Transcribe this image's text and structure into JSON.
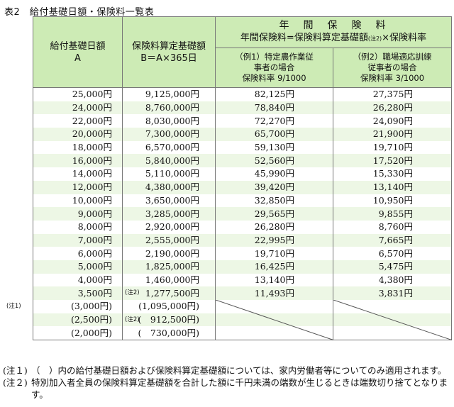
{
  "title": "表2　給付基礎日額・保険料一覧表",
  "header": {
    "col1": [
      "給付基礎日額",
      "A"
    ],
    "col2": [
      "保険料算定基礎額",
      "B＝A×365日"
    ],
    "group_title": "年　間　保　険　料",
    "group_formula_a": "年間保険料=保険料算定基礎額",
    "group_formula_note": "(注2)",
    "group_formula_b": "×保険料率",
    "ex1": [
      "（例1）特定農作業従",
      "事者の場合",
      "保険料率 9/1000"
    ],
    "ex2": [
      "（例2）職場適応訓練",
      "従事者の場合",
      "保険料率 3/1000"
    ]
  },
  "rows": [
    {
      "a": "25,000円",
      "b": "9,125,000円",
      "c": "82,125円",
      "d": "27,375円"
    },
    {
      "a": "24,000円",
      "b": "8,760,000円",
      "c": "78,840円",
      "d": "26,280円"
    },
    {
      "a": "22,000円",
      "b": "8,030,000円",
      "c": "72,270円",
      "d": "24,090円"
    },
    {
      "a": "20,000円",
      "b": "7,300,000円",
      "c": "65,700円",
      "d": "21,900円"
    },
    {
      "a": "18,000円",
      "b": "6,570,000円",
      "c": "59,130円",
      "d": "19,710円"
    },
    {
      "a": "16,000円",
      "b": "5,840,000円",
      "c": "52,560円",
      "d": "17,520円"
    },
    {
      "a": "14,000円",
      "b": "5,110,000円",
      "c": "45,990円",
      "d": "15,330円"
    },
    {
      "a": "12,000円",
      "b": "4,380,000円",
      "c": "39,420円",
      "d": "13,140円"
    },
    {
      "a": "10,000円",
      "b": "3,650,000円",
      "c": "32,850円",
      "d": "10,950円"
    },
    {
      "a": "9,000円",
      "b": "3,285,000円",
      "c": "29,565円",
      "d": "9,855円"
    },
    {
      "a": "8,000円",
      "b": "2,920,000円",
      "c": "26,280円",
      "d": "8,760円"
    },
    {
      "a": "7,000円",
      "b": "2,555,000円",
      "c": "22,995円",
      "d": "7,665円"
    },
    {
      "a": "6,000円",
      "b": "2,190,000円",
      "c": "19,710円",
      "d": "6,570円"
    },
    {
      "a": "5,000円",
      "b": "1,825,000円",
      "c": "16,425円",
      "d": "5,475円"
    },
    {
      "a": "4,000円",
      "b": "1,460,000円",
      "c": "13,140円",
      "d": "4,380円"
    },
    {
      "a": "3,500円",
      "b": "1,277,500円",
      "b_note": "(注2)",
      "c": "11,493円",
      "d": "3,831円"
    },
    {
      "a": "(3,000円)",
      "a_note": "(注1)",
      "b": "(1,095,000円)",
      "c": "",
      "d": ""
    },
    {
      "a": "(2,500円)",
      "b": "(　912,500円)",
      "b_note": "(注2)",
      "c": "",
      "d": ""
    },
    {
      "a": "(2,000円)",
      "b": "(　730,000円)",
      "c": "",
      "d": ""
    }
  ],
  "notes": [
    {
      "mark": "(注１)",
      "text": "（　）内の給付基礎日額および保険料算定基礎額については、家内労働者等についてのみ適用されます。"
    },
    {
      "mark": "(注２)",
      "text": "特別加入者全員の保険料算定基礎額を合計した額に千円未満の端数が生じるときは端数切り捨てとなります。"
    }
  ]
}
